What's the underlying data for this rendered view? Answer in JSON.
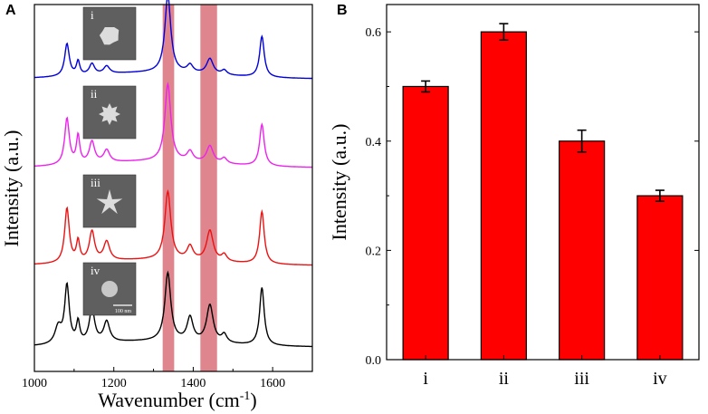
{
  "chart_data": [
    {
      "panel_label": "A",
      "type": "line",
      "xlabel": "Wavenumber (cm",
      "xlabel_sup": "-1",
      "xlabel_close": ")",
      "ylabel": "Intensity (a.u.)",
      "xlim": [
        1000,
        1700
      ],
      "xticks": [
        "1000",
        "1200",
        "1400",
        "1600"
      ],
      "highlight_bands": [
        [
          1323,
          1352
        ],
        [
          1418,
          1460
        ]
      ],
      "highlight_color": "#d9707a",
      "scale_bar_label": "100 nm",
      "series": [
        {
          "name": "i",
          "color": "#0000dd",
          "height": 85,
          "peaks": [
            [
              1082,
              0.42,
              7
            ],
            [
              1110,
              0.18,
              5
            ],
            [
              1145,
              0.14,
              8
            ],
            [
              1182,
              0.1,
              9
            ],
            [
              1336,
              1.0,
              9
            ],
            [
              1392,
              0.1,
              9
            ],
            [
              1442,
              0.2,
              10
            ],
            [
              1478,
              0.06,
              8
            ],
            [
              1573,
              0.53,
              7
            ]
          ]
        },
        {
          "name": "ii",
          "color": "#ee22ee",
          "height": 85,
          "peaks": [
            [
              1082,
              0.6,
              7
            ],
            [
              1110,
              0.36,
              5
            ],
            [
              1145,
              0.28,
              8
            ],
            [
              1182,
              0.16,
              9
            ],
            [
              1336,
              1.0,
              9
            ],
            [
              1392,
              0.13,
              9
            ],
            [
              1442,
              0.22,
              10
            ],
            [
              1478,
              0.07,
              8
            ],
            [
              1573,
              0.54,
              7
            ]
          ]
        },
        {
          "name": "iii",
          "color": "#ee1111",
          "height": 75,
          "peaks": [
            [
              1082,
              0.8,
              7
            ],
            [
              1110,
              0.3,
              5
            ],
            [
              1145,
              0.44,
              8
            ],
            [
              1182,
              0.28,
              9
            ],
            [
              1336,
              1.0,
              9
            ],
            [
              1392,
              0.2,
              9
            ],
            [
              1442,
              0.45,
              10
            ],
            [
              1478,
              0.1,
              8
            ],
            [
              1573,
              0.77,
              7
            ]
          ]
        },
        {
          "name": "iv",
          "color": "#000000",
          "height": 75,
          "peaks": [
            [
              1060,
              0.25,
              10
            ],
            [
              1082,
              0.85,
              7
            ],
            [
              1110,
              0.3,
              5
            ],
            [
              1145,
              0.5,
              8
            ],
            [
              1182,
              0.3,
              9
            ],
            [
              1336,
              1.0,
              9
            ],
            [
              1392,
              0.35,
              9
            ],
            [
              1442,
              0.55,
              10
            ],
            [
              1478,
              0.12,
              8
            ],
            [
              1573,
              0.85,
              7
            ]
          ]
        }
      ]
    },
    {
      "panel_label": "B",
      "type": "bar",
      "categories": [
        "i",
        "ii",
        "iii",
        "iv"
      ],
      "values": [
        0.5,
        0.6,
        0.4,
        0.3
      ],
      "errors": [
        0.01,
        0.015,
        0.02,
        0.01
      ],
      "ylabel": "Intensity (a.u.)",
      "ylim": [
        0.0,
        0.65
      ],
      "yticks": [
        "0.0",
        "0.2",
        "0.4",
        "0.6"
      ],
      "bar_color": "#ff0000"
    }
  ]
}
